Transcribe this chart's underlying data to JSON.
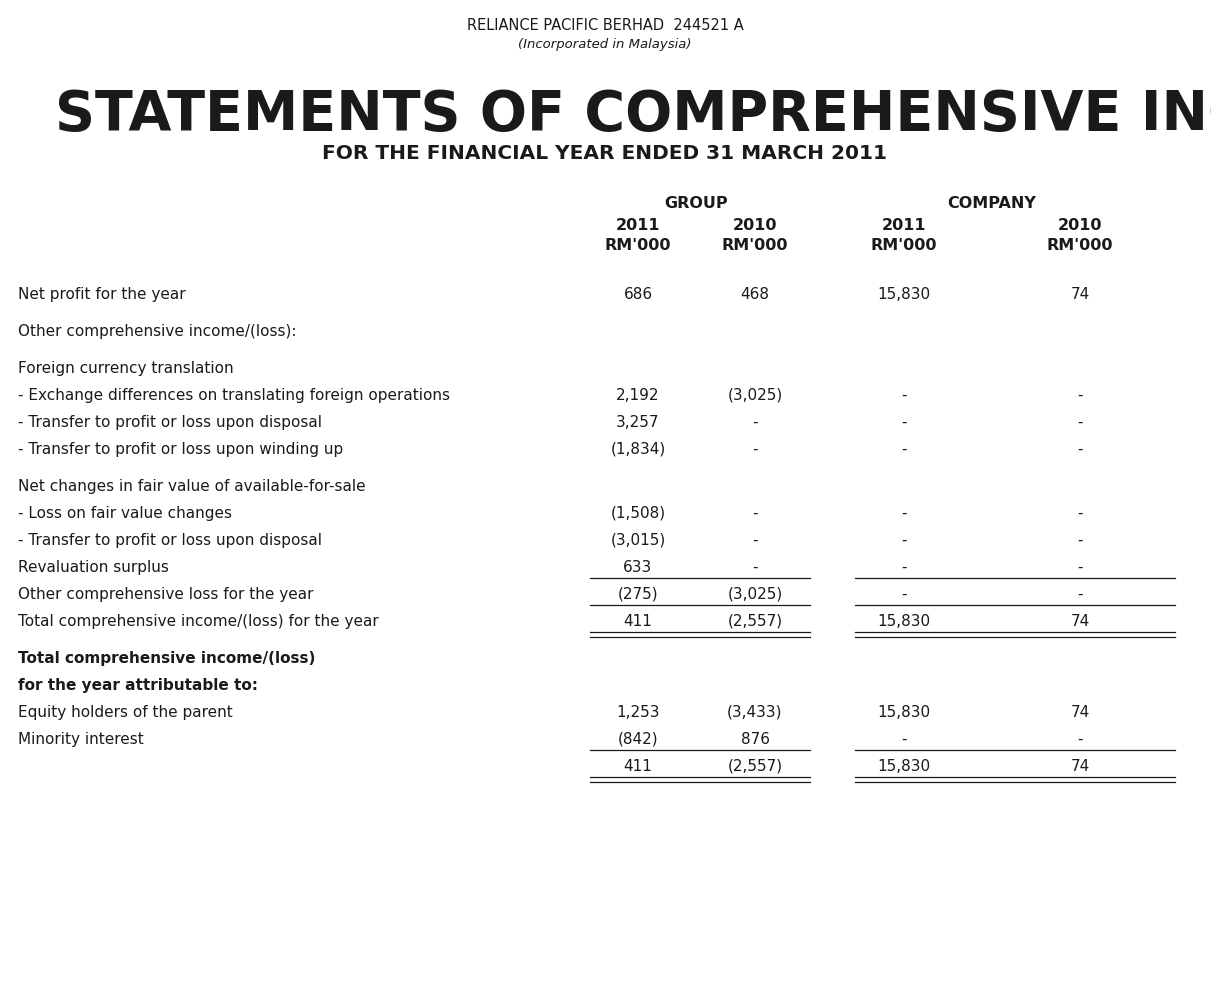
{
  "company_line1": "RELIANCE PACIFIC BERHAD  244521 A",
  "company_line2": "(Incorporated in Malaysia)",
  "main_title": "STATEMENTS OF COMPREHENSIVE INCOME",
  "sub_title": "FOR THE FINANCIAL YEAR ENDED 31 MARCH 2011",
  "rows": [
    {
      "label": "Net profit for the year",
      "g2011": "686",
      "g2010": "468",
      "c2011": "15,830",
      "c2010": "74",
      "bold": false,
      "spacer_before": true,
      "line_after": false,
      "double_line_after": false
    },
    {
      "label": "Other comprehensive income/(loss):",
      "g2011": "",
      "g2010": "",
      "c2011": "",
      "c2010": "",
      "bold": false,
      "spacer_before": true,
      "line_after": false,
      "double_line_after": false
    },
    {
      "label": "Foreign currency translation",
      "g2011": "",
      "g2010": "",
      "c2011": "",
      "c2010": "",
      "bold": false,
      "spacer_before": true,
      "line_after": false,
      "double_line_after": false
    },
    {
      "label": "- Exchange differences on translating foreign operations",
      "g2011": "2,192",
      "g2010": "(3,025)",
      "c2011": "-",
      "c2010": "-",
      "bold": false,
      "spacer_before": false,
      "line_after": false,
      "double_line_after": false
    },
    {
      "label": "- Transfer to profit or loss upon disposal",
      "g2011": "3,257",
      "g2010": "-",
      "c2011": "-",
      "c2010": "-",
      "bold": false,
      "spacer_before": false,
      "line_after": false,
      "double_line_after": false
    },
    {
      "label": "- Transfer to profit or loss upon winding up",
      "g2011": "(1,834)",
      "g2010": "-",
      "c2011": "-",
      "c2010": "-",
      "bold": false,
      "spacer_before": false,
      "line_after": false,
      "double_line_after": false
    },
    {
      "label": "Net changes in fair value of available-for-sale",
      "g2011": "",
      "g2010": "",
      "c2011": "",
      "c2010": "",
      "bold": false,
      "spacer_before": true,
      "line_after": false,
      "double_line_after": false
    },
    {
      "label": "- Loss on fair value changes",
      "g2011": "(1,508)",
      "g2010": "-",
      "c2011": "-",
      "c2010": "-",
      "bold": false,
      "spacer_before": false,
      "line_after": false,
      "double_line_after": false
    },
    {
      "label": "- Transfer to profit or loss upon disposal",
      "g2011": "(3,015)",
      "g2010": "-",
      "c2011": "-",
      "c2010": "-",
      "bold": false,
      "spacer_before": false,
      "line_after": false,
      "double_line_after": false
    },
    {
      "label": "Revaluation surplus",
      "g2011": "633",
      "g2010": "-",
      "c2011": "-",
      "c2010": "-",
      "bold": false,
      "spacer_before": false,
      "line_after": true,
      "double_line_after": false
    },
    {
      "label": "Other comprehensive loss for the year",
      "g2011": "(275)",
      "g2010": "(3,025)",
      "c2011": "-",
      "c2010": "-",
      "bold": false,
      "spacer_before": false,
      "line_after": true,
      "double_line_after": false
    },
    {
      "label": "Total comprehensive income/(loss) for the year",
      "g2011": "411",
      "g2010": "(2,557)",
      "c2011": "15,830",
      "c2010": "74",
      "bold": false,
      "spacer_before": false,
      "line_after": false,
      "double_line_after": true
    },
    {
      "label": "Total comprehensive income/(loss)",
      "g2011": "",
      "g2010": "",
      "c2011": "",
      "c2010": "",
      "bold": true,
      "spacer_before": true,
      "line_after": false,
      "double_line_after": false
    },
    {
      "label": "for the year attributable to:",
      "g2011": "",
      "g2010": "",
      "c2011": "",
      "c2010": "",
      "bold": true,
      "spacer_before": false,
      "line_after": false,
      "double_line_after": false
    },
    {
      "label": "Equity holders of the parent",
      "g2011": "1,253",
      "g2010": "(3,433)",
      "c2011": "15,830",
      "c2010": "74",
      "bold": false,
      "spacer_before": false,
      "line_after": false,
      "double_line_after": false
    },
    {
      "label": "Minority interest",
      "g2011": "(842)",
      "g2010": "876",
      "c2011": "-",
      "c2010": "-",
      "bold": false,
      "spacer_before": false,
      "line_after": true,
      "double_line_after": false
    },
    {
      "label": "",
      "g2011": "411",
      "g2010": "(2,557)",
      "c2011": "15,830",
      "c2010": "74",
      "bold": false,
      "spacer_before": false,
      "line_after": false,
      "double_line_after": true
    }
  ],
  "bg_color": "#ffffff",
  "text_color": "#1a1a1a"
}
